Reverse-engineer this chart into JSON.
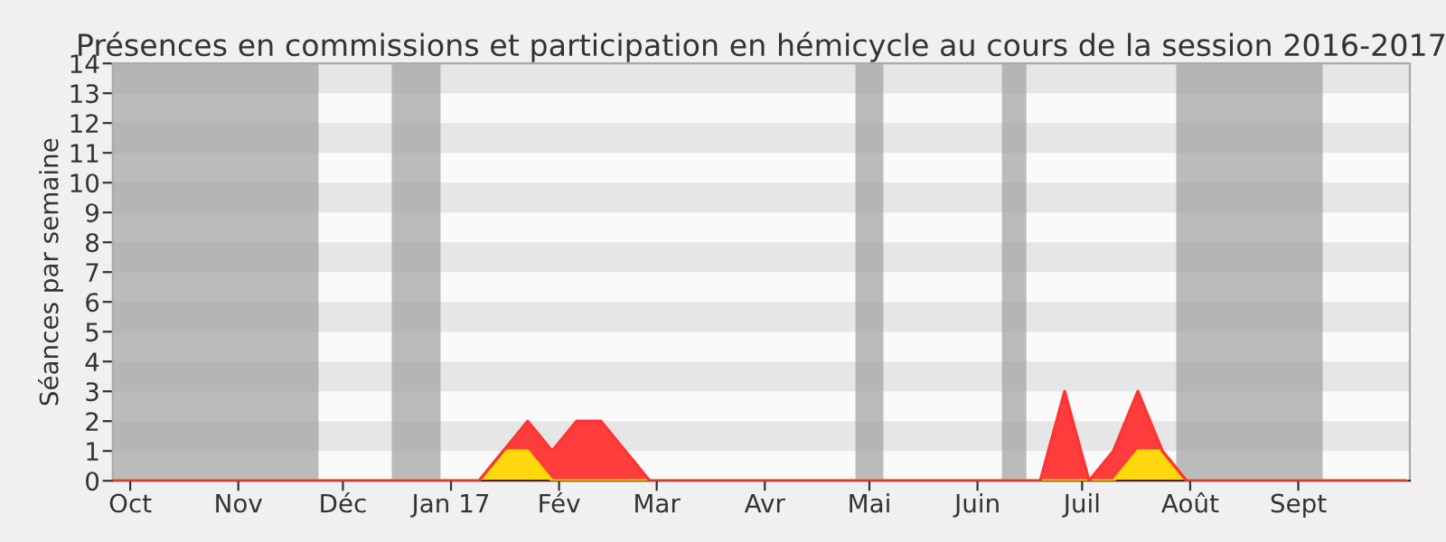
{
  "chart_data": {
    "type": "area",
    "stacked": true,
    "title": "Présences en commissions et participation en hémicycle au cours de la session 2016-2017",
    "ylabel": "Séances par semaine",
    "x": [
      "2016-09-26",
      "2016-10-03",
      "2016-10-10",
      "2016-10-17",
      "2016-10-24",
      "2016-10-31",
      "2016-11-07",
      "2016-11-14",
      "2016-11-21",
      "2016-11-28",
      "2016-12-05",
      "2016-12-12",
      "2016-12-19",
      "2016-12-26",
      "2017-01-02",
      "2017-01-09",
      "2017-01-16",
      "2017-01-23",
      "2017-01-30",
      "2017-02-06",
      "2017-02-13",
      "2017-02-20",
      "2017-02-27",
      "2017-03-06",
      "2017-03-13",
      "2017-03-20",
      "2017-03-27",
      "2017-04-03",
      "2017-04-10",
      "2017-04-17",
      "2017-04-24",
      "2017-05-01",
      "2017-05-08",
      "2017-05-15",
      "2017-05-22",
      "2017-05-29",
      "2017-06-05",
      "2017-06-12",
      "2017-06-19",
      "2017-06-26",
      "2017-07-03",
      "2017-07-10",
      "2017-07-17",
      "2017-07-24",
      "2017-07-31",
      "2017-08-07",
      "2017-08-14",
      "2017-08-21",
      "2017-08-28",
      "2017-09-04",
      "2017-09-11",
      "2017-09-18",
      "2017-09-25",
      "2017-10-02"
    ],
    "series": [
      {
        "color": "#ffd700",
        "values": [
          0,
          0,
          0,
          0,
          0,
          0,
          0,
          0,
          0,
          0,
          0,
          0,
          0,
          0,
          0,
          0,
          1,
          1,
          0,
          0,
          0,
          0,
          0,
          0,
          0,
          0,
          0,
          0,
          0,
          0,
          0,
          0,
          0,
          0,
          0,
          0,
          0,
          0,
          0,
          0,
          0,
          0,
          1,
          1,
          0,
          0,
          0,
          0,
          0,
          0,
          0,
          0,
          0,
          0
        ]
      },
      {
        "color": "#ff3333",
        "values": [
          0,
          0,
          0,
          0,
          0,
          0,
          0,
          0,
          0,
          0,
          0,
          0,
          0,
          0,
          0,
          0,
          0,
          1,
          1,
          2,
          2,
          1,
          0,
          0,
          0,
          0,
          0,
          0,
          0,
          0,
          0,
          0,
          0,
          0,
          0,
          0,
          0,
          0,
          0,
          3,
          0,
          1,
          2,
          0,
          0,
          0,
          0,
          0,
          0,
          0,
          0,
          0,
          0,
          0
        ]
      }
    ],
    "xlim": [
      "2016-09-26",
      "2017-10-03"
    ],
    "xticks": [
      {
        "value": "2016-10-01",
        "label": "Oct"
      },
      {
        "value": "2016-11-01",
        "label": "Nov"
      },
      {
        "value": "2016-12-01",
        "label": "Déc"
      },
      {
        "value": "2017-01-01",
        "label": "Jan 17"
      },
      {
        "value": "2017-02-01",
        "label": "Fév"
      },
      {
        "value": "2017-03-01",
        "label": "Mar"
      },
      {
        "value": "2017-04-01",
        "label": "Avr"
      },
      {
        "value": "2017-05-01",
        "label": "Mai"
      },
      {
        "value": "2017-06-01",
        "label": "Juin"
      },
      {
        "value": "2017-07-01",
        "label": "Juil"
      },
      {
        "value": "2017-08-01",
        "label": "Août"
      },
      {
        "value": "2017-09-01",
        "label": "Sept"
      }
    ],
    "ylim": [
      0,
      14
    ],
    "yticks": [
      0,
      1,
      2,
      3,
      4,
      5,
      6,
      7,
      8,
      9,
      10,
      11,
      12,
      13,
      14
    ],
    "bands": [
      {
        "axis": "y",
        "from": 1,
        "to": 2,
        "color": "#e6e6e6"
      },
      {
        "axis": "y",
        "from": 3,
        "to": 4,
        "color": "#e6e6e6"
      },
      {
        "axis": "y",
        "from": 5,
        "to": 6,
        "color": "#e6e6e6"
      },
      {
        "axis": "y",
        "from": 7,
        "to": 8,
        "color": "#e6e6e6"
      },
      {
        "axis": "y",
        "from": 9,
        "to": 10,
        "color": "#e6e6e6"
      },
      {
        "axis": "y",
        "from": 11,
        "to": 12,
        "color": "#e6e6e6"
      },
      {
        "axis": "y",
        "from": 13,
        "to": 14,
        "color": "#e6e6e6"
      },
      {
        "axis": "x",
        "from": "2016-09-26",
        "to": "2016-11-24",
        "color": "#a0a0a0"
      },
      {
        "axis": "x",
        "from": "2016-12-15",
        "to": "2016-12-29",
        "color": "#a0a0a0"
      },
      {
        "axis": "x",
        "from": "2017-04-27",
        "to": "2017-05-05",
        "color": "#a0a0a0"
      },
      {
        "axis": "x",
        "from": "2017-06-08",
        "to": "2017-06-15",
        "color": "#a0a0a0"
      },
      {
        "axis": "x",
        "from": "2017-07-28",
        "to": "2017-09-08",
        "color": "#a0a0a0"
      }
    ]
  }
}
